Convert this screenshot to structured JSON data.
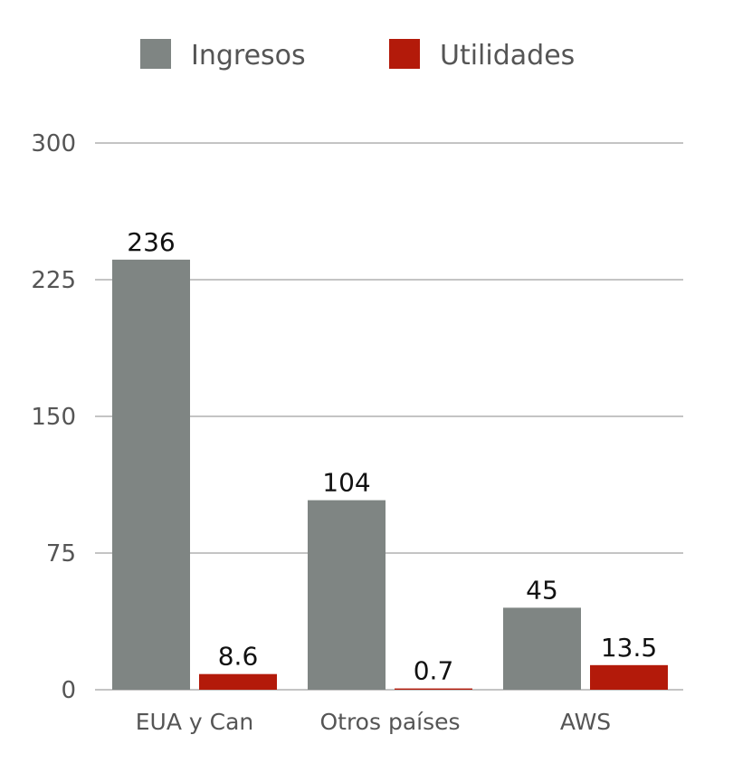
{
  "chart_data": {
    "type": "bar",
    "categories": [
      "EUA y Can",
      "Otros países",
      "AWS"
    ],
    "series": [
      {
        "name": "Ingresos",
        "values": [
          236,
          104,
          45
        ],
        "labels": [
          "236",
          "104",
          "45"
        ],
        "color": "#7f8583"
      },
      {
        "name": "Utilidades",
        "values": [
          8.6,
          0.7,
          13.5
        ],
        "labels": [
          "8.6",
          "0.7",
          "13.5"
        ],
        "color": "#b31a0a"
      }
    ],
    "ylim": [
      0,
      300
    ],
    "yticks": [
      0,
      75,
      150,
      225,
      300
    ],
    "ytick_labels": [
      "0",
      "75",
      "150",
      "225",
      "300"
    ],
    "grid": true,
    "legend": "top"
  }
}
